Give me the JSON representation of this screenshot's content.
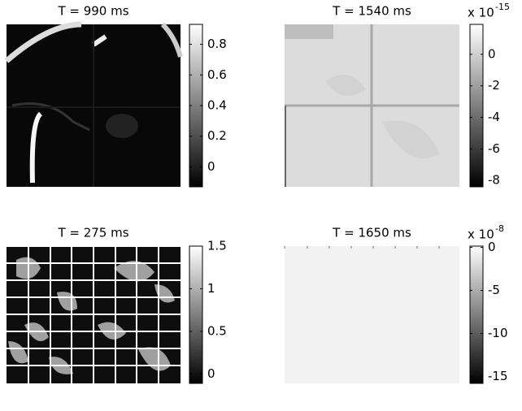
{
  "chart_data": [
    {
      "type": "heatmap",
      "title": "T = 990 ms",
      "clim": [
        -0.13,
        0.93
      ],
      "cticks": [
        0,
        0.2,
        0.4,
        0.6,
        0.8
      ]
    },
    {
      "type": "heatmap",
      "title": "T = 1540 ms",
      "clim": [
        -8.4,
        1.9
      ],
      "cticks": [
        -8,
        -6,
        -4,
        -2,
        0
      ],
      "multiplier": "x 10",
      "exponent": "-15"
    },
    {
      "type": "heatmap",
      "title": "T = 275 ms",
      "clim": [
        -0.11,
        1.5
      ],
      "cticks": [
        0,
        0.5,
        1,
        1.5
      ]
    },
    {
      "type": "heatmap",
      "title": "T = 1650 ms",
      "clim": [
        -15.8,
        0.15
      ],
      "cticks": [
        -15,
        -10,
        -5,
        0
      ],
      "multiplier": "x 10",
      "exponent": "-8"
    }
  ]
}
